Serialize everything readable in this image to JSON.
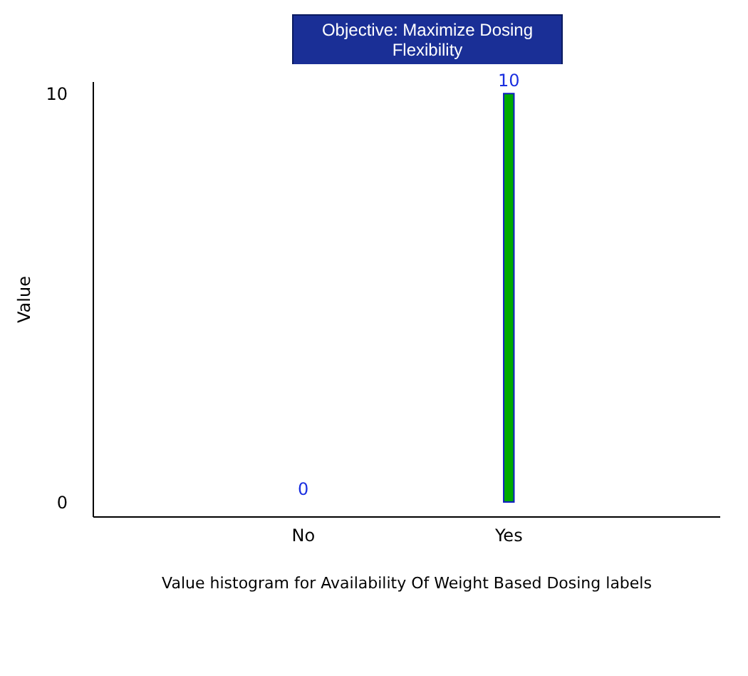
{
  "chart_data": {
    "type": "bar",
    "title": "Objective: Maximize Dosing Flexibility",
    "xlabel": "Value histogram for Availability Of Weight Based Dosing labels",
    "ylabel": "Value",
    "categories": [
      "No",
      "Yes"
    ],
    "values": [
      0,
      10
    ],
    "color": "#00aa00",
    "ylim": [
      -0.35,
      10.3
    ],
    "yticks": [
      0,
      10
    ],
    "data_labels": true,
    "grid": false
  }
}
